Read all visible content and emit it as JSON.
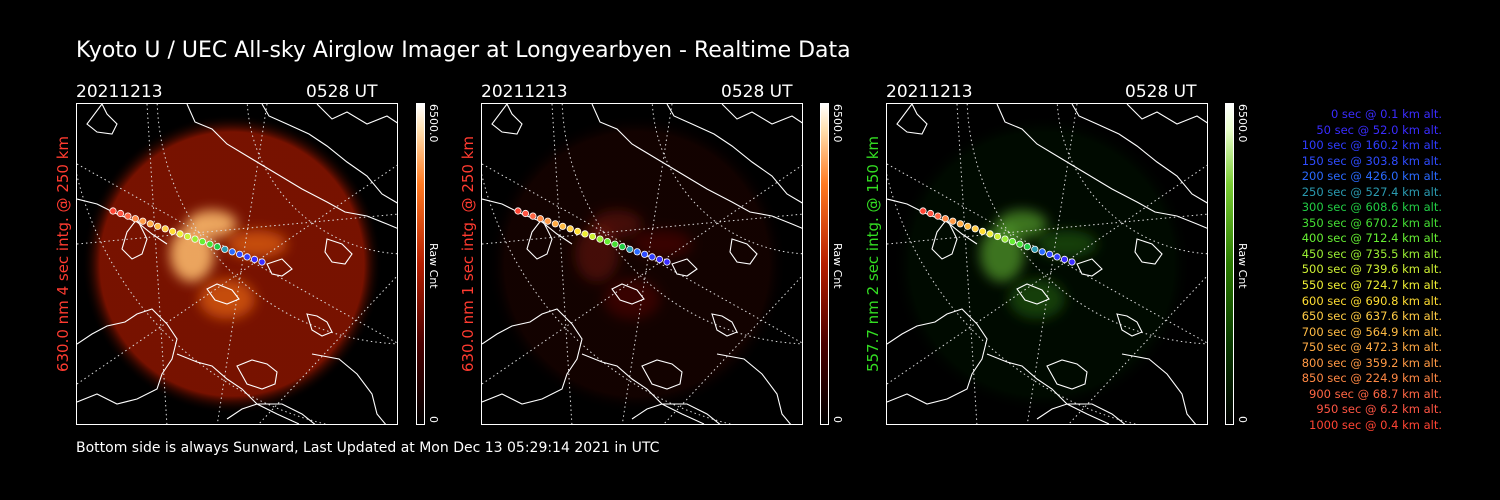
{
  "title": "Kyoto U / UEC All-sky Airglow Imager at Longyearbyen - Realtime Data",
  "footer": "Bottom side is always Sunward, Last Updated at Mon Dec 13 05:29:14 2021 in UTC",
  "panels": [
    {
      "date": "20211213",
      "time": "0528 UT",
      "ylabel": "630.0 nm 4 sec intg. @ 250 km",
      "label_color": "#ff3b30",
      "cbar_max": "6500.0",
      "cbar_min": "0",
      "cbar_unit": "Raw Cnt",
      "theme": "red",
      "intensity": 1.0
    },
    {
      "date": "20211213",
      "time": "0528 UT",
      "ylabel": "630.0 nm 1 sec intg. @ 250 km",
      "label_color": "#ff3b30",
      "cbar_max": "6500.0",
      "cbar_min": "0",
      "cbar_unit": "Raw Cnt",
      "theme": "red",
      "intensity": 0.25
    },
    {
      "date": "20211213",
      "time": "0528 UT",
      "ylabel": "557.7 nm 2 sec intg. @ 150 km",
      "label_color": "#33dd22",
      "cbar_max": "6500.0",
      "cbar_min": "0",
      "cbar_unit": "Raw Cnt",
      "theme": "green",
      "intensity": 0.5
    }
  ],
  "legend": [
    {
      "text": "0 sec @    0.1 km alt.",
      "color": "#3a2cff"
    },
    {
      "text": "50 sec @   52.0 km alt.",
      "color": "#3a2cff"
    },
    {
      "text": "100 sec @  160.2 km alt.",
      "color": "#2f3cff"
    },
    {
      "text": "150 sec @  303.8 km alt.",
      "color": "#2f4cff"
    },
    {
      "text": "200 sec @  426.0 km alt.",
      "color": "#2a6aff"
    },
    {
      "text": "250 sec @  527.4 km alt.",
      "color": "#2a9ab0"
    },
    {
      "text": "300 sec @  608.6 km alt.",
      "color": "#22cc44"
    },
    {
      "text": "350 sec @  670.2 km alt.",
      "color": "#44dd33"
    },
    {
      "text": "400 sec @  712.4 km alt.",
      "color": "#66ee33"
    },
    {
      "text": "450 sec @  735.5 km alt.",
      "color": "#99ee33"
    },
    {
      "text": "500 sec @  739.6 km alt.",
      "color": "#ccee33"
    },
    {
      "text": "550 sec @  724.7 km alt.",
      "color": "#eeee33"
    },
    {
      "text": "600 sec @  690.8 km alt.",
      "color": "#ffdd33"
    },
    {
      "text": "650 sec @  637.6 km alt.",
      "color": "#ffcc44"
    },
    {
      "text": "700 sec @  564.9 km alt.",
      "color": "#ffbb44"
    },
    {
      "text": "750 sec @  472.3 km alt.",
      "color": "#ffaa44"
    },
    {
      "text": "800 sec @  359.2 km alt.",
      "color": "#ff9944"
    },
    {
      "text": "850 sec @  224.9 km alt.",
      "color": "#ff8844"
    },
    {
      "text": "900 sec @   68.7 km alt.",
      "color": "#ff6644"
    },
    {
      "text": "950 sec @    6.2 km alt.",
      "color": "#ff5544"
    },
    {
      "text": "1000 sec @    0.4 km alt.",
      "color": "#ff4433"
    }
  ]
}
